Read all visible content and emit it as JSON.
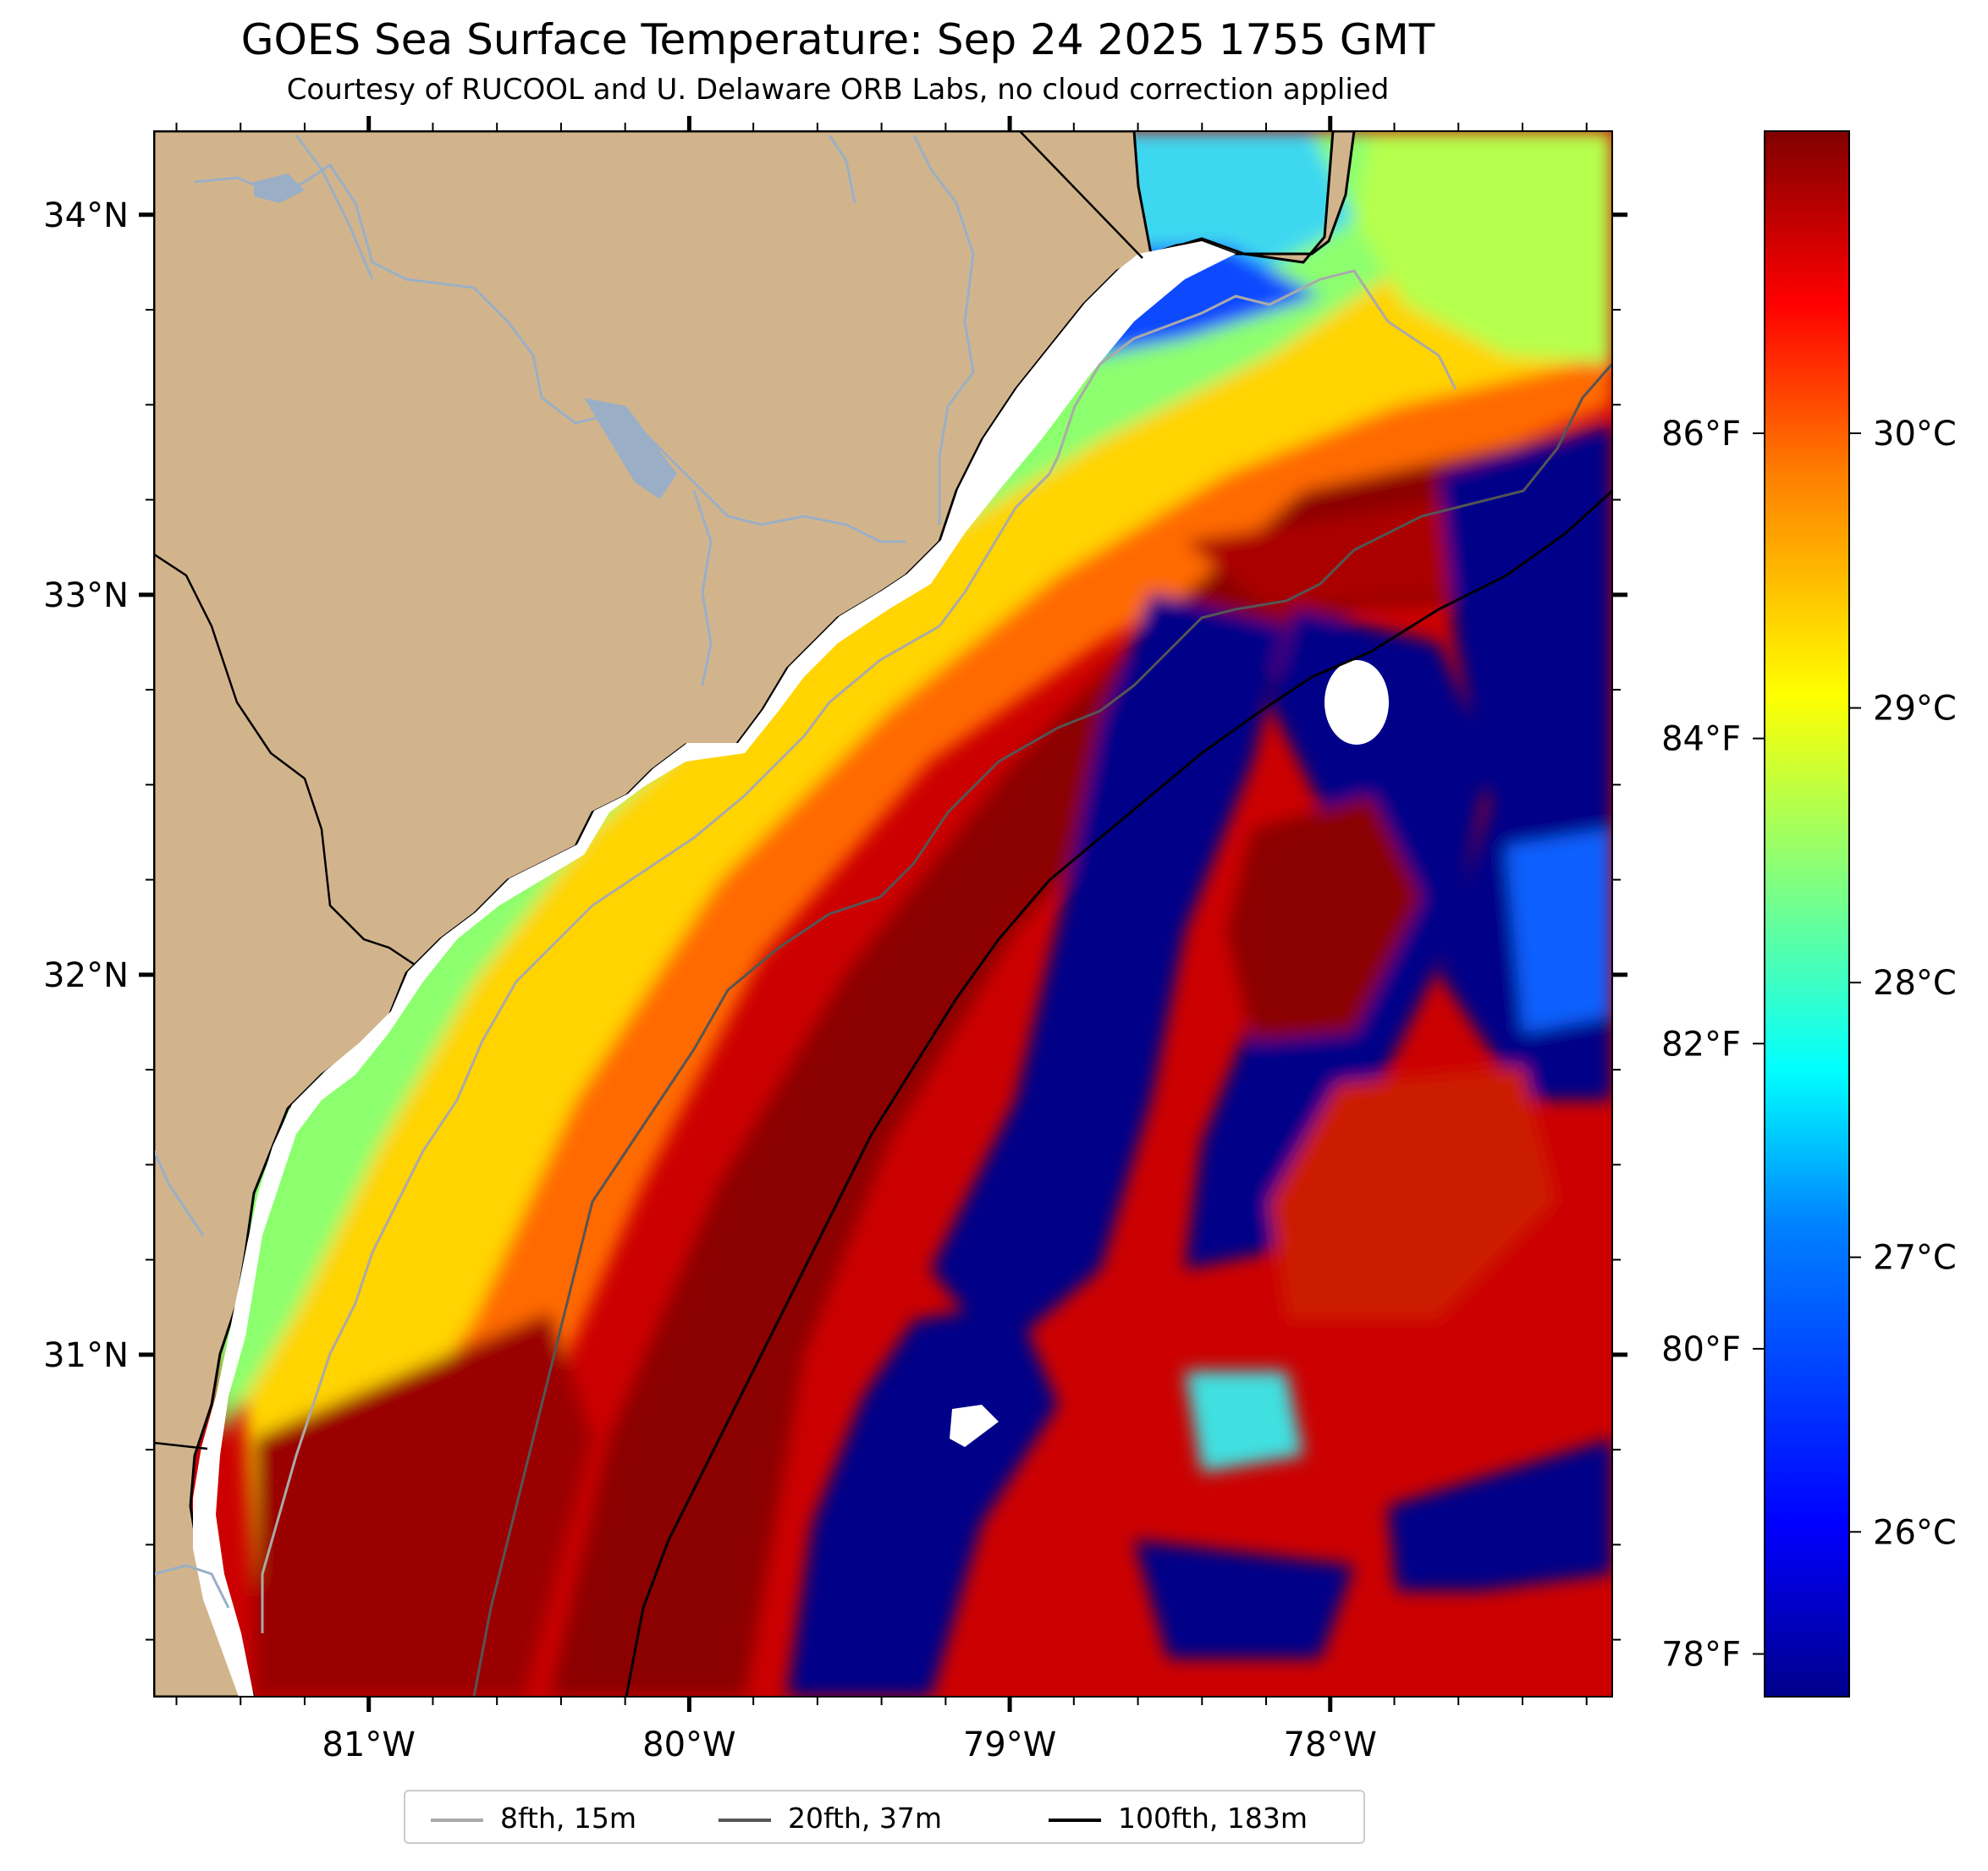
{
  "title": "GOES Sea Surface Temperature: Sep 24 2025 1755 GMT",
  "subtitle": "Courtesy of RUCOOL and U. Delaware ORB Labs, no cloud correction applied",
  "colors": {
    "land": "#d2b48c",
    "coast_gap": "#ffffff",
    "river": "#9aafc6",
    "contour_8fth": "#aaaaaa",
    "contour_20fth": "#555555",
    "contour_100fth": "#000000",
    "colormap": [
      "#00008b",
      "#0000ff",
      "#0080ff",
      "#00ffff",
      "#80ff80",
      "#ffff00",
      "#ff8000",
      "#ff0000",
      "#800000"
    ]
  },
  "map": {
    "longitude_range": [
      -81.67,
      -77.12
    ],
    "latitude_range": [
      30.1,
      34.22
    ],
    "x_ticks": [
      "81°W",
      "80°W",
      "79°W",
      "78°W"
    ],
    "y_ticks": [
      "34°N",
      "33°N",
      "32°N",
      "31°N"
    ]
  },
  "colorbar": {
    "colormap": "jet",
    "range_c": [
      25.4,
      31.1
    ],
    "celsius_ticks": [
      "30°C",
      "29°C",
      "28°C",
      "27°C",
      "26°C"
    ],
    "fahrenheit_ticks": [
      "86°F",
      "84°F",
      "82°F",
      "80°F",
      "78°F"
    ]
  },
  "legend": {
    "placement": "bottom-center",
    "items": [
      {
        "label": "8fth, 15m",
        "color": "#aaaaaa"
      },
      {
        "label": "20fth, 37m",
        "color": "#555555"
      },
      {
        "label": "100fth, 183m",
        "color": "#000000"
      }
    ]
  }
}
